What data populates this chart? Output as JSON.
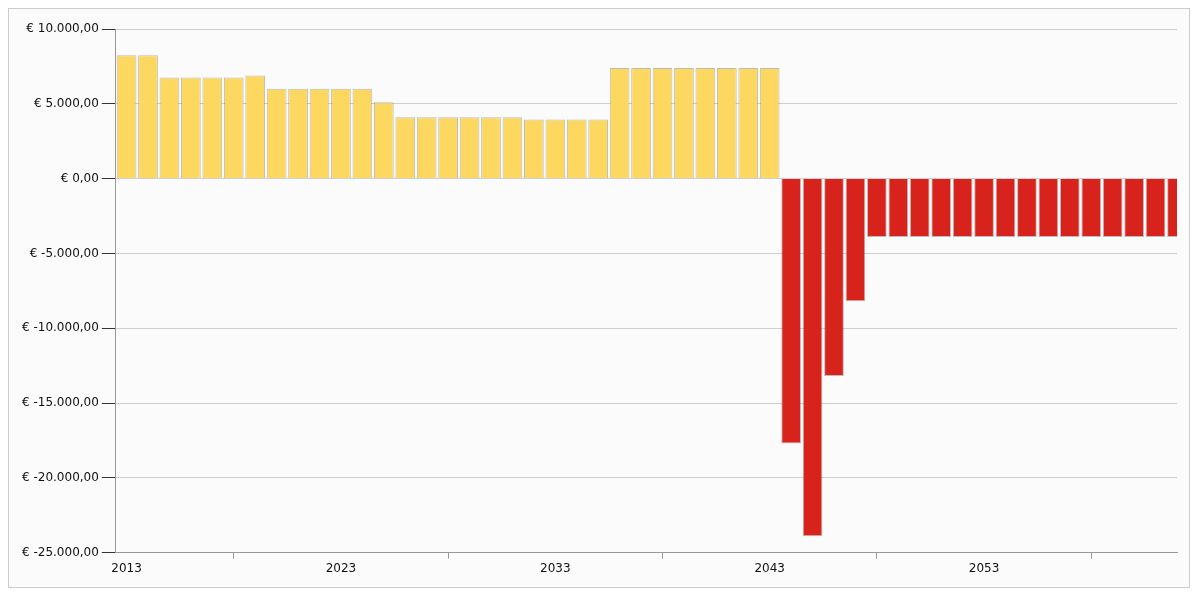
{
  "chart_data": {
    "type": "bar",
    "x": [
      2013,
      2014,
      2015,
      2016,
      2017,
      2018,
      2019,
      2020,
      2021,
      2022,
      2023,
      2024,
      2025,
      2026,
      2027,
      2028,
      2029,
      2030,
      2031,
      2032,
      2033,
      2034,
      2035,
      2036,
      2037,
      2038,
      2039,
      2040,
      2041,
      2042,
      2043,
      2044,
      2045,
      2046,
      2047,
      2048,
      2049,
      2050,
      2051,
      2052,
      2053,
      2054,
      2055,
      2056,
      2057,
      2058,
      2059,
      2060,
      2061,
      2062
    ],
    "series": [
      {
        "values": [
          8250,
          8250,
          6750,
          6750,
          6750,
          6750,
          6900,
          6000,
          6000,
          6000,
          6000,
          6000,
          5100,
          4100,
          4100,
          4100,
          4100,
          4100,
          4100,
          3950,
          3950,
          3950,
          3950,
          7400,
          7400,
          7400,
          7400,
          7400,
          7400,
          7400,
          7400,
          -17700,
          -23900,
          -13200,
          -8200,
          -3900,
          -3900,
          -3900,
          -3900,
          -3900,
          -3900,
          -3900,
          -3900,
          -3900,
          -3900,
          -3900,
          -3900,
          -3900,
          -3900,
          -3900
        ],
        "colors": [
          "#fdd860",
          "#fdd860",
          "#fdd860",
          "#fdd860",
          "#fdd860",
          "#fdd860",
          "#fdd860",
          "#fdd860",
          "#fdd860",
          "#fdd860",
          "#fdd860",
          "#fdd860",
          "#fdd860",
          "#fdd860",
          "#fdd860",
          "#fdd860",
          "#fdd860",
          "#fdd860",
          "#fdd860",
          "#fdd860",
          "#fdd860",
          "#fdd860",
          "#fdd860",
          "#fdd860",
          "#fdd860",
          "#fdd860",
          "#fdd860",
          "#fdd860",
          "#fdd860",
          "#fdd860",
          "#fdd860",
          "#d7231b",
          "#d7231b",
          "#d7231b",
          "#d7231b",
          "#d7231b",
          "#d7231b",
          "#d7231b",
          "#d7231b",
          "#d7231b",
          "#d7231b",
          "#d7231b",
          "#d7231b",
          "#d7231b",
          "#d7231b",
          "#d7231b",
          "#d7231b",
          "#d7231b",
          "#d7231b",
          "#d7231b"
        ]
      }
    ],
    "xlim": [
      2012.5,
      2062
    ],
    "xticks": [
      2013,
      2023,
      2033,
      2043,
      2053
    ],
    "ylim": [
      -25000,
      10000
    ],
    "yticks": [
      {
        "value": -25000,
        "label": "€ -25.000,00"
      },
      {
        "value": -20000,
        "label": "€ -20.000,00"
      },
      {
        "value": -15000,
        "label": "€ -15.000,00"
      },
      {
        "value": -10000,
        "label": "€ -10.000,00"
      },
      {
        "value": -5000,
        "label": "€ -5.000,00"
      },
      {
        "value": 0,
        "label": "€ 0,00"
      },
      {
        "value": 5000,
        "label": "€ 5.000,00"
      },
      {
        "value": 10000,
        "label": "€ 10.000,00"
      }
    ],
    "grid": "y",
    "legend": false
  }
}
